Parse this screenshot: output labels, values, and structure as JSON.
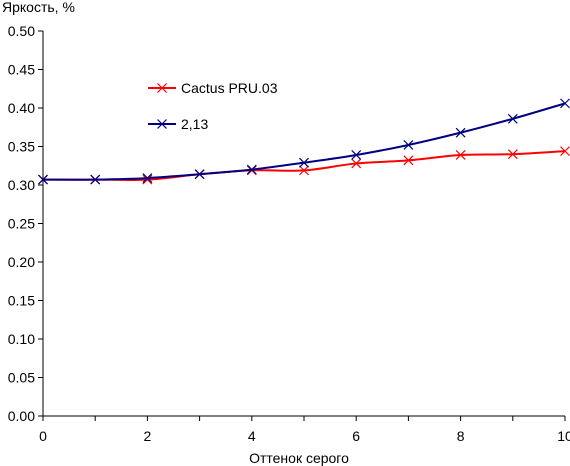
{
  "chart_data": {
    "type": "line",
    "xlabel": "Оттенок серого",
    "ylabel": "Яркость, %",
    "xlim": [
      0,
      10
    ],
    "ylim": [
      0,
      0.5
    ],
    "xticks": [
      "0",
      "2",
      "4",
      "6",
      "8",
      "10"
    ],
    "yticks": [
      "0.00",
      "0.05",
      "0.10",
      "0.15",
      "0.20",
      "0.25",
      "0.30",
      "0.35",
      "0.40",
      "0.45",
      "0.50"
    ],
    "grid": false,
    "legend_position": "top-left",
    "x": [
      0,
      1,
      2,
      3,
      4,
      5,
      6,
      7,
      8,
      9,
      10
    ],
    "series": [
      {
        "name": "Cactus PRU.03",
        "color": "#ff0000",
        "marker": "x",
        "values": [
          0.307,
          0.307,
          0.307,
          0.314,
          0.319,
          0.319,
          0.328,
          0.332,
          0.339,
          0.34,
          0.344
        ]
      },
      {
        "name": "2,13",
        "color": "#000080",
        "marker": "x",
        "values": [
          0.307,
          0.307,
          0.309,
          0.314,
          0.32,
          0.329,
          0.339,
          0.352,
          0.368,
          0.386,
          0.406
        ]
      }
    ]
  }
}
